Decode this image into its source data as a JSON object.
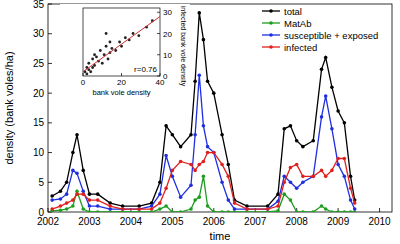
{
  "chart_data": [
    {
      "type": "line",
      "xlabel": "time",
      "ylabel": "density (bank voles/ha)",
      "xlim": [
        2002,
        2010.3
      ],
      "xticks": [
        2002,
        2003,
        2004,
        2005,
        2006,
        2007,
        2008,
        2009,
        2010
      ],
      "ylim": [
        0,
        35
      ],
      "yticks": [
        0,
        5,
        10,
        15,
        20,
        25,
        30,
        35
      ],
      "grid": false,
      "legend": "upper right",
      "marker": "circle",
      "x": [
        2002.1,
        2002.3,
        2002.45,
        2002.6,
        2002.7,
        2002.85,
        2003.0,
        2003.2,
        2003.5,
        2003.8,
        2004.2,
        2004.5,
        2004.7,
        2004.85,
        2005.0,
        2005.2,
        2005.45,
        2005.55,
        2005.65,
        2005.75,
        2005.85,
        2006.0,
        2006.2,
        2006.35,
        2006.5,
        2006.8,
        2007.3,
        2007.55,
        2007.7,
        2007.85,
        2008.0,
        2008.15,
        2008.4,
        2008.6,
        2008.7,
        2008.85,
        2009.0,
        2009.15,
        2009.3,
        2009.4
      ],
      "series": [
        {
          "name": "total",
          "color": "#000000",
          "values": [
            2.7,
            3.5,
            5,
            10,
            13,
            7,
            3,
            3,
            1.5,
            1,
            1,
            1.5,
            5,
            14.5,
            13,
            11,
            13,
            22,
            33.5,
            29,
            22,
            20,
            13,
            8,
            2,
            1,
            1,
            3,
            14,
            14.5,
            12,
            11,
            12,
            24,
            26,
            21,
            17,
            15,
            6,
            2
          ]
        },
        {
          "name": "MatAb",
          "color": "#1e9e1e",
          "values": [
            0.2,
            0.3,
            0.5,
            1,
            3.5,
            0.5,
            0,
            0,
            0,
            0,
            0,
            0,
            0.5,
            1,
            0,
            0,
            0.5,
            2,
            2.5,
            6,
            1,
            0,
            0,
            0,
            0,
            0,
            0,
            0.2,
            3,
            2,
            0,
            0,
            0,
            1,
            0.5,
            0,
            0,
            0,
            0,
            0
          ]
        },
        {
          "name": "susceptible + exposed",
          "color": "#1f2fe0",
          "values": [
            2,
            2.2,
            3,
            7,
            6.5,
            3.5,
            1,
            1,
            0.5,
            0.5,
            0.5,
            1,
            3,
            9.5,
            6,
            2.5,
            4.5,
            13,
            23,
            14.5,
            11,
            10,
            5,
            2,
            0.5,
            0.5,
            0.5,
            1.8,
            6,
            5,
            4,
            5,
            6,
            16,
            19.5,
            14,
            8,
            6,
            2,
            0.5
          ]
        },
        {
          "name": "infected",
          "color": "#e0201f",
          "values": [
            0.5,
            1,
            1.5,
            2,
            3,
            3,
            2,
            2,
            1,
            0.5,
            0.5,
            0.5,
            1.5,
            4,
            7,
            8.5,
            8,
            7,
            8,
            8.5,
            10,
            10,
            8,
            6,
            1.5,
            0.5,
            0.5,
            1,
            5,
            7.5,
            8,
            6,
            6,
            7,
            6,
            7,
            9,
            9,
            4,
            1.5
          ]
        }
      ]
    },
    {
      "type": "scatter",
      "xlabel": "bank vole density",
      "ylabel": "infected bank vole density",
      "xlim": [
        0,
        40
      ],
      "xticks": [
        0,
        20,
        40
      ],
      "ylim": [
        0,
        32
      ],
      "yticks": [
        0,
        10,
        20,
        30
      ],
      "color": "#222222",
      "marker": "circle",
      "annotations": [
        "r=0.76"
      ],
      "x": [
        1,
        2,
        2,
        3,
        3,
        4,
        5,
        5,
        6,
        7,
        8,
        9,
        10,
        11,
        12,
        13,
        14,
        14,
        15,
        17,
        19,
        20,
        22,
        24,
        26,
        29,
        33,
        36,
        12,
        6
      ],
      "values": [
        2,
        1,
        4,
        3,
        6,
        2,
        8,
        4,
        5,
        9,
        7,
        12,
        6,
        10,
        14,
        8,
        11,
        16,
        13,
        12,
        16,
        14,
        18,
        17,
        20,
        19,
        23,
        26,
        20,
        10
      ],
      "fit": {
        "color": "#cc3333",
        "x": [
          0,
          40
        ],
        "values": [
          2,
          28
        ]
      }
    }
  ]
}
